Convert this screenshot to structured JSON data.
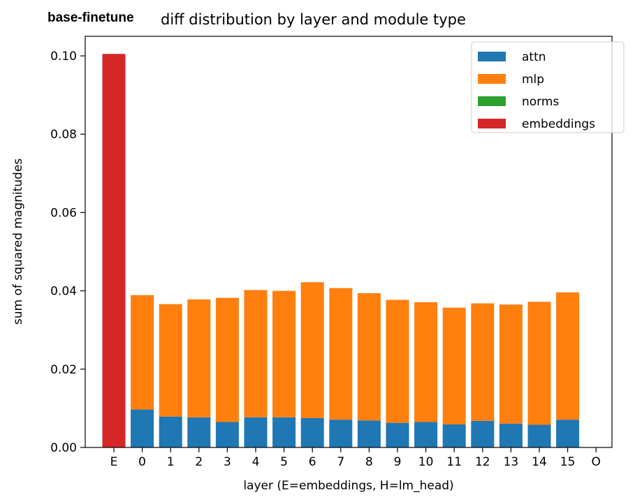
{
  "chart_data": {
    "type": "bar",
    "stacked": true,
    "title_prefix": "base-finetune",
    "title": "diff distribution by layer and module type",
    "xlabel": "layer (E=embeddings, H=lm_head)",
    "ylabel": "sum of squared magnitudes",
    "ylim": [
      0,
      0.105
    ],
    "yticks": [
      "0.00",
      "0.02",
      "0.04",
      "0.06",
      "0.08",
      "0.10"
    ],
    "ytick_values": [
      0,
      0.02,
      0.04,
      0.06,
      0.08,
      0.1
    ],
    "categories": [
      "E",
      "0",
      "1",
      "2",
      "3",
      "4",
      "5",
      "6",
      "7",
      "8",
      "9",
      "10",
      "11",
      "12",
      "13",
      "14",
      "15",
      "O"
    ],
    "legend_position": "top-right",
    "series": [
      {
        "name": "attn",
        "color": "#1f77b4",
        "values": [
          0,
          0.0097,
          0.0079,
          0.0077,
          0.0065,
          0.0077,
          0.0077,
          0.0075,
          0.0071,
          0.0069,
          0.0063,
          0.0065,
          0.0059,
          0.0068,
          0.0061,
          0.0058,
          0.0071,
          0
        ]
      },
      {
        "name": "mlp",
        "color": "#ff7f0e",
        "values": [
          0,
          0.0292,
          0.0287,
          0.0301,
          0.0317,
          0.0325,
          0.0323,
          0.0347,
          0.0336,
          0.0325,
          0.0314,
          0.0306,
          0.0298,
          0.03,
          0.0304,
          0.0314,
          0.0325,
          0
        ]
      },
      {
        "name": "norms",
        "color": "#2ca02c",
        "values": [
          0,
          0,
          0,
          0,
          0,
          0,
          0,
          0,
          0,
          0,
          0,
          0,
          0,
          0,
          0,
          0,
          0,
          0
        ]
      },
      {
        "name": "embeddings",
        "color": "#d62728",
        "values": [
          0.1005,
          0,
          0,
          0,
          0,
          0,
          0,
          0,
          0,
          0,
          0,
          0,
          0,
          0,
          0,
          0,
          0,
          0
        ]
      }
    ]
  }
}
